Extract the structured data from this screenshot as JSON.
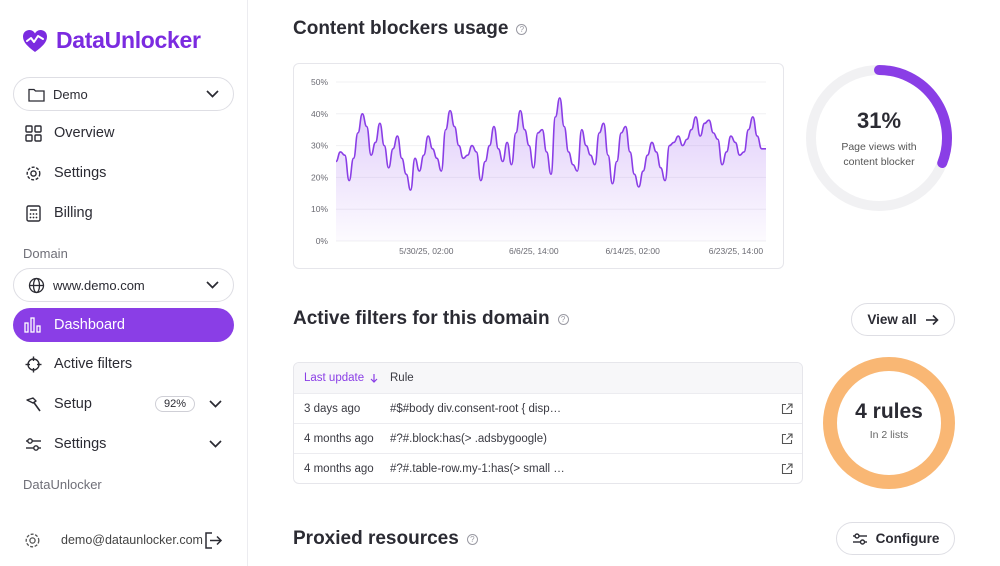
{
  "brand": {
    "name": "DataUnlocker"
  },
  "sidebar": {
    "workspace_select": "Demo",
    "top_items": [
      {
        "label": "Overview"
      },
      {
        "label": "Settings"
      },
      {
        "label": "Billing"
      }
    ],
    "domain_section": "Domain",
    "domain_select": "www.demo.com",
    "domain_items": [
      {
        "label": "Dashboard"
      },
      {
        "label": "Active filters"
      },
      {
        "label": "Setup",
        "badge": "92%"
      },
      {
        "label": "Settings"
      }
    ],
    "du_section": "DataUnlocker",
    "user_email": "demo@dataunlocker.com"
  },
  "blockers": {
    "title": "Content blockers usage",
    "percent": "31%",
    "caption_line1": "Page views with",
    "caption_line2": "content blocker",
    "percent_value": 0.31
  },
  "filters": {
    "title": "Active filters for this domain",
    "view_all": "View all",
    "columns": [
      "Last update",
      "Rule"
    ],
    "rows": [
      {
        "updated": "3 days ago",
        "rule": "#$#body div.consent-root { disp…"
      },
      {
        "updated": "4 months ago",
        "rule": "#?#.block:has(> .adsbygoogle)"
      },
      {
        "updated": "4 months ago",
        "rule": "#?#.table-row.my-1:has(> small …"
      }
    ],
    "rules_count": "4 rules",
    "rules_sub": "In 2 lists"
  },
  "proxied": {
    "title": "Proxied resources",
    "configure": "Configure"
  },
  "colors": {
    "accent": "#8a3ee6",
    "orange": "#f9b774",
    "track": "#f1f1f3"
  },
  "chart_data": {
    "type": "area",
    "title": "",
    "xlabel": "",
    "ylabel": "",
    "yticks": [
      "0%",
      "10%",
      "20%",
      "30%",
      "40%",
      "50%"
    ],
    "ylim": [
      0,
      50
    ],
    "xticks": [
      "5/30/25, 02:00",
      "6/6/25, 14:00",
      "6/14/25, 02:00",
      "6/23/25, 14:00"
    ],
    "series": [
      {
        "values": [
          25,
          28,
          27,
          19,
          26,
          34,
          40,
          36,
          27,
          31,
          37,
          30,
          23,
          29,
          33,
          26,
          21,
          16,
          26,
          22,
          27,
          33,
          29,
          26,
          22,
          35,
          41,
          36,
          30,
          26,
          27,
          30,
          28,
          19,
          25,
          30,
          36,
          29,
          25,
          31,
          24,
          34,
          41,
          35,
          30,
          23,
          34,
          35,
          28,
          21,
          39,
          45,
          36,
          28,
          24,
          22,
          35,
          30,
          27,
          24,
          34,
          37,
          27,
          18,
          25,
          34,
          36,
          28,
          21,
          17,
          22,
          27,
          31,
          28,
          23,
          19,
          30,
          31,
          33,
          30,
          32,
          35,
          39,
          33,
          37,
          38,
          34,
          32,
          24,
          28,
          33,
          31,
          27,
          28,
          35,
          39,
          33,
          29,
          29
        ]
      }
    ]
  }
}
